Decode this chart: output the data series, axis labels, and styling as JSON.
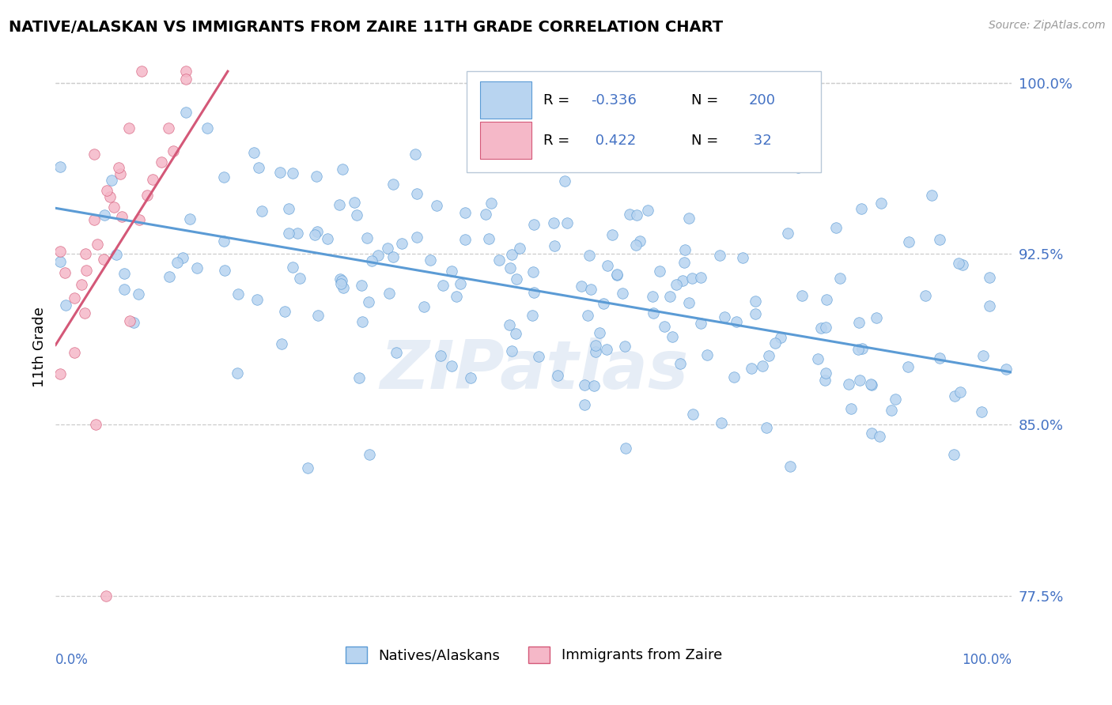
{
  "title": "NATIVE/ALASKAN VS IMMIGRANTS FROM ZAIRE 11TH GRADE CORRELATION CHART",
  "source_text": "Source: ZipAtlas.com",
  "ylabel": "11th Grade",
  "x_range": [
    0.0,
    1.0
  ],
  "y_range": [
    0.758,
    1.01
  ],
  "y_ticks": [
    0.775,
    0.85,
    0.925,
    1.0
  ],
  "y_tick_labels": [
    "77.5%",
    "85.0%",
    "92.5%",
    "100.0%"
  ],
  "native_color": "#b8d4f0",
  "immigrant_color": "#f5b8c8",
  "native_line_color": "#5b9bd5",
  "immigrant_line_color": "#d45878",
  "accent_blue": "#4472c4",
  "R_native": -0.336,
  "N_native": 200,
  "R_immigrant": 0.422,
  "N_immigrant": 32,
  "watermark": "ZIPatlas",
  "legend_label_1": "Natives/Alaskans",
  "legend_label_2": "Immigrants from Zaire",
  "native_trend_start": 0.945,
  "native_trend_end": 0.873,
  "immigrant_trend_start_x": 0.0,
  "immigrant_trend_start_y": 0.885,
  "immigrant_trend_end_x": 0.18,
  "immigrant_trend_end_y": 1.005
}
